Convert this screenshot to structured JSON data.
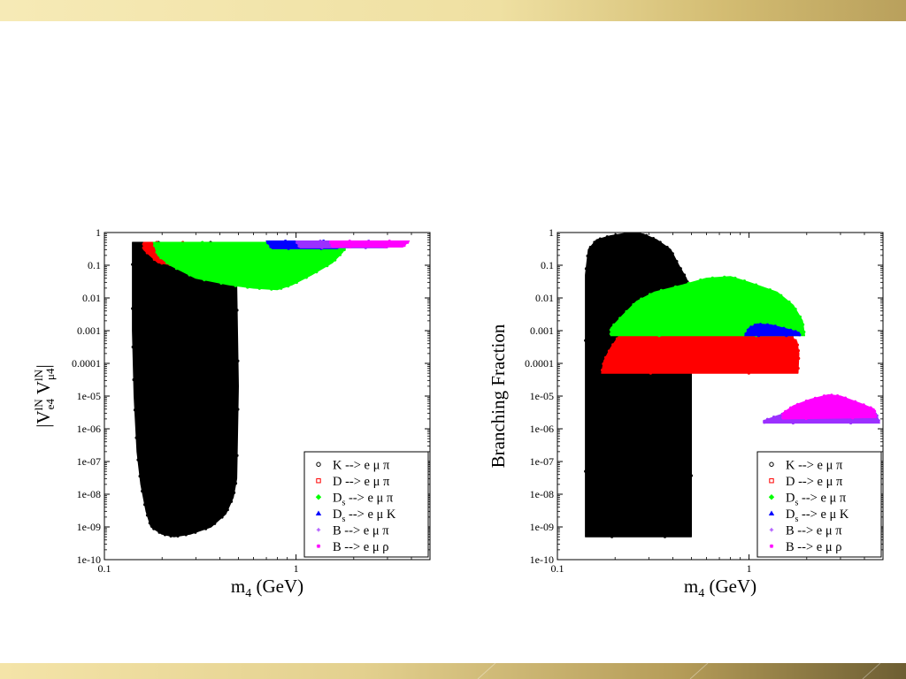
{
  "decor": {
    "top_band_color": "#efe0a2",
    "bottom_band_color": "#c9b36a"
  },
  "chart_data": [
    {
      "type": "scatter",
      "xlabel_main": "m",
      "xlabel_sub": "4",
      "xlabel_unit": " (GeV)",
      "ylabel_parts": [
        "|V",
        "lN",
        "e4",
        " V",
        "lN",
        "μ4",
        "|"
      ],
      "x_scale": "log",
      "y_scale": "log",
      "xlim": [
        0.1,
        5
      ],
      "ylim": [
        1e-10,
        1
      ],
      "x_ticks": [
        {
          "v": 0.1,
          "label": "0.1"
        },
        {
          "v": 1,
          "label": "1"
        }
      ],
      "y_ticks": [
        {
          "v": 1,
          "label": "1"
        },
        {
          "v": 0.1,
          "label": "0.1"
        },
        {
          "v": 0.01,
          "label": "0.01"
        },
        {
          "v": 0.001,
          "label": "0.001"
        },
        {
          "v": 0.0001,
          "label": "0.0001"
        },
        {
          "v": 1e-05,
          "label": "1e-05"
        },
        {
          "v": 1e-06,
          "label": "1e-06"
        },
        {
          "v": 1e-07,
          "label": "1e-07"
        },
        {
          "v": 1e-08,
          "label": "1e-08"
        },
        {
          "v": 1e-09,
          "label": "1e-09"
        },
        {
          "v": 1e-10,
          "label": "1e-10"
        }
      ],
      "legend_position": "bottom-right",
      "series": [
        {
          "name": "K --> e μ π",
          "label_main": "K --> e μ π",
          "label_sub": "",
          "label_tail": "",
          "color": "#000000",
          "marker": "circle",
          "region": [
            [
              0.14,
              0.5
            ],
            [
              0.49,
              0.5
            ],
            [
              0.49,
              0.025
            ],
            [
              0.5,
              2e-05
            ],
            [
              0.49,
              3e-08
            ],
            [
              0.47,
              8e-09
            ],
            [
              0.43,
              2.5e-09
            ],
            [
              0.36,
              1e-09
            ],
            [
              0.28,
              6e-10
            ],
            [
              0.23,
              5e-10
            ],
            [
              0.2,
              6e-10
            ],
            [
              0.175,
              1e-09
            ],
            [
              0.165,
              3e-09
            ],
            [
              0.155,
              2e-08
            ],
            [
              0.148,
              2e-07
            ],
            [
              0.143,
              1e-05
            ],
            [
              0.14,
              0.001
            ]
          ]
        },
        {
          "name": "D --> e μ π",
          "label_main": "D --> e μ π",
          "label_sub": "",
          "label_tail": "",
          "color": "#ff0000",
          "marker": "square",
          "region": [
            [
              0.16,
              0.5
            ],
            [
              0.3,
              0.5
            ],
            [
              0.3,
              0.12
            ],
            [
              0.23,
              0.1
            ],
            [
              0.19,
              0.12
            ],
            [
              0.16,
              0.3
            ]
          ]
        },
        {
          "name": "D_s --> e μ π",
          "label_main": "D",
          "label_sub": "s",
          "label_tail": " --> e μ π",
          "color": "#00ff00",
          "marker": "diamond",
          "region": [
            [
              0.18,
              0.5
            ],
            [
              1.9,
              0.5
            ],
            [
              1.75,
              0.25
            ],
            [
              1.55,
              0.12
            ],
            [
              1.2,
              0.05
            ],
            [
              0.95,
              0.025
            ],
            [
              0.8,
              0.018
            ],
            [
              0.6,
              0.02
            ],
            [
              0.45,
              0.025
            ],
            [
              0.3,
              0.04
            ],
            [
              0.22,
              0.1
            ],
            [
              0.19,
              0.2
            ]
          ]
        },
        {
          "name": "D_s --> e μ K",
          "label_main": "D",
          "label_sub": "s",
          "label_tail": " --> e μ K",
          "color": "#0000ff",
          "marker": "triangle",
          "region": [
            [
              0.7,
              0.55
            ],
            [
              1.75,
              0.55
            ],
            [
              1.65,
              0.32
            ],
            [
              0.75,
              0.32
            ]
          ]
        },
        {
          "name": "B --> e μ π",
          "label_main": "B --> e μ π",
          "label_sub": "",
          "label_tail": "",
          "color": "#9b30ff",
          "marker": "plus",
          "region": [
            [
              1.0,
              0.55
            ],
            [
              3.2,
              0.55
            ],
            [
              3.0,
              0.34
            ],
            [
              1.05,
              0.34
            ]
          ]
        },
        {
          "name": "B --> e μ ρ",
          "label_main": "B --> e μ ρ",
          "label_sub": "",
          "label_tail": "",
          "color": "#ff00ff",
          "marker": "star",
          "region": [
            [
              1.5,
              0.55
            ],
            [
              3.9,
              0.55
            ],
            [
              3.6,
              0.36
            ],
            [
              1.55,
              0.36
            ]
          ]
        }
      ]
    },
    {
      "type": "scatter",
      "xlabel_main": "m",
      "xlabel_sub": "4",
      "xlabel_unit": " (GeV)",
      "ylabel": "Branching Fraction",
      "x_scale": "log",
      "y_scale": "log",
      "xlim": [
        0.1,
        5
      ],
      "ylim": [
        1e-10,
        1
      ],
      "x_ticks": [
        {
          "v": 0.1,
          "label": "0.1"
        },
        {
          "v": 1,
          "label": "1"
        }
      ],
      "y_ticks": [
        {
          "v": 1,
          "label": "1"
        },
        {
          "v": 0.1,
          "label": "0.1"
        },
        {
          "v": 0.01,
          "label": "0.01"
        },
        {
          "v": 0.001,
          "label": "0.001"
        },
        {
          "v": 0.0001,
          "label": "0.0001"
        },
        {
          "v": 1e-05,
          "label": "1e-05"
        },
        {
          "v": 1e-06,
          "label": "1e-06"
        },
        {
          "v": 1e-07,
          "label": "1e-07"
        },
        {
          "v": 1e-08,
          "label": "1e-08"
        },
        {
          "v": 1e-09,
          "label": "1e-09"
        },
        {
          "v": 1e-10,
          "label": "1e-10"
        }
      ],
      "legend_position": "bottom-right",
      "series": [
        {
          "name": "K --> e μ π",
          "label_main": "K --> e μ π",
          "label_sub": "",
          "label_tail": "",
          "color": "#000000",
          "marker": "circle",
          "region": [
            [
              0.14,
              5e-10
            ],
            [
              0.5,
              5e-10
            ],
            [
              0.5,
              0.015
            ],
            [
              0.47,
              0.04
            ],
            [
              0.43,
              0.1
            ],
            [
              0.39,
              0.3
            ],
            [
              0.33,
              0.6
            ],
            [
              0.28,
              0.9
            ],
            [
              0.24,
              1
            ],
            [
              0.19,
              0.8
            ],
            [
              0.16,
              0.6
            ],
            [
              0.145,
              0.3
            ],
            [
              0.14,
              0.05
            ]
          ]
        },
        {
          "name": "D --> e μ π",
          "label_main": "D --> e μ π",
          "label_sub": "",
          "label_tail": "",
          "color": "#ff0000",
          "marker": "square",
          "region": [
            [
              0.17,
              5e-05
            ],
            [
              1.8,
              5e-05
            ],
            [
              1.82,
              0.0002
            ],
            [
              1.78,
              0.00045
            ],
            [
              1.65,
              0.0007
            ],
            [
              0.21,
              0.0007
            ],
            [
              0.19,
              0.0003
            ],
            [
              0.175,
              0.00012
            ]
          ]
        },
        {
          "name": "D_s --> e μ π",
          "label_main": "D",
          "label_sub": "s",
          "label_tail": " --> e μ π",
          "color": "#00ff00",
          "marker": "diamond",
          "region": [
            [
              0.19,
              0.0007
            ],
            [
              1.95,
              0.0007
            ],
            [
              1.9,
              0.002
            ],
            [
              1.7,
              0.006
            ],
            [
              1.4,
              0.015
            ],
            [
              1.0,
              0.03
            ],
            [
              0.8,
              0.045
            ],
            [
              0.6,
              0.04
            ],
            [
              0.45,
              0.025
            ],
            [
              0.32,
              0.015
            ],
            [
              0.26,
              0.008
            ],
            [
              0.22,
              0.003
            ],
            [
              0.19,
              0.0012
            ]
          ]
        },
        {
          "name": "D_s --> e μ K",
          "label_main": "D",
          "label_sub": "s",
          "label_tail": " --> e μ K",
          "color": "#0000ff",
          "marker": "triangle",
          "region": [
            [
              0.95,
              0.0007
            ],
            [
              1.85,
              0.0007
            ],
            [
              1.8,
              0.0009
            ],
            [
              1.6,
              0.0011
            ],
            [
              1.3,
              0.0015
            ],
            [
              1.1,
              0.0016
            ],
            [
              1.0,
              0.0012
            ]
          ]
        },
        {
          "name": "B --> e μ π",
          "label_main": "B --> e μ π",
          "label_sub": "",
          "label_tail": "",
          "color": "#9b30ff",
          "marker": "plus",
          "region": [
            [
              1.2,
              1.5e-06
            ],
            [
              4.8,
              1.5e-06
            ],
            [
              4.6,
              3e-06
            ],
            [
              4.0,
              4e-06
            ],
            [
              3.0,
              6e-06
            ],
            [
              2.5,
              5e-06
            ],
            [
              1.8,
              4e-06
            ],
            [
              1.4,
              2.5e-06
            ],
            [
              1.2,
              1.8e-06
            ]
          ]
        },
        {
          "name": "B --> e μ ρ",
          "label_main": "B --> e μ ρ",
          "label_sub": "",
          "label_tail": "",
          "color": "#ff00ff",
          "marker": "star",
          "region": [
            [
              1.5,
              2e-06
            ],
            [
              4.6,
              2.2e-06
            ],
            [
              4.5,
              4e-06
            ],
            [
              3.8,
              6e-06
            ],
            [
              3.0,
              1e-05
            ],
            [
              2.6,
              1.1e-05
            ],
            [
              2.1,
              8e-06
            ],
            [
              1.7,
              5e-06
            ],
            [
              1.5,
              3e-06
            ]
          ]
        }
      ]
    }
  ]
}
